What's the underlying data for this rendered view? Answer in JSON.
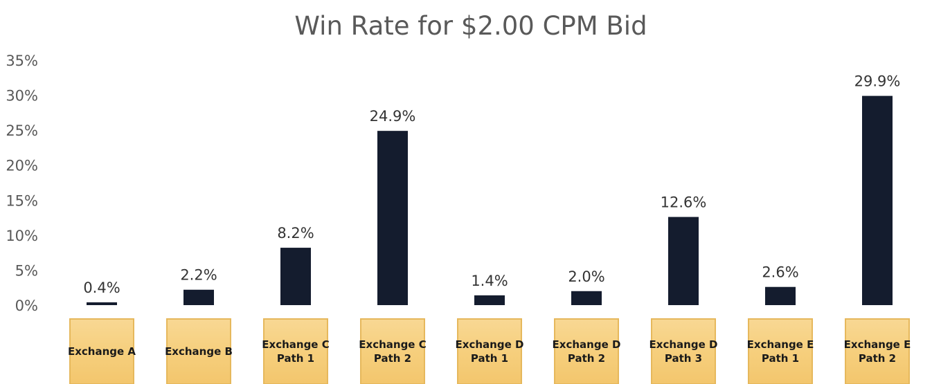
{
  "chart_data": {
    "type": "bar",
    "title": "Win Rate for $2.00 CPM Bid",
    "xlabel": "",
    "ylabel": "",
    "ylim": [
      0,
      35
    ],
    "y_ticks": [
      "0%",
      "5%",
      "10%",
      "15%",
      "20%",
      "25%",
      "30%",
      "35%"
    ],
    "grid": false,
    "legend": "none",
    "categories": [
      [
        "Exchange A"
      ],
      [
        "Exchange B"
      ],
      [
        "Exchange C",
        "Path 1"
      ],
      [
        "Exchange C",
        "Path 2"
      ],
      [
        "Exchange D",
        "Path 1"
      ],
      [
        "Exchange D",
        "Path 2"
      ],
      [
        "Exchange D",
        "Path 3"
      ],
      [
        "Exchange E",
        "Path 1"
      ],
      [
        "Exchange E",
        "Path 2"
      ]
    ],
    "values": [
      0.4,
      2.2,
      8.2,
      24.9,
      1.4,
      2.0,
      12.6,
      2.6,
      29.9
    ],
    "data_labels": [
      "0.4%",
      "2.2%",
      "8.2%",
      "24.9%",
      "1.4%",
      "2.0%",
      "12.6%",
      "2.6%",
      "29.9%"
    ],
    "colors": {
      "bar": "#141c2e",
      "category_box_fill": "#f5cf82",
      "category_box_border": "#e6b85c",
      "title": "#595959",
      "axis_text": "#595959"
    }
  }
}
